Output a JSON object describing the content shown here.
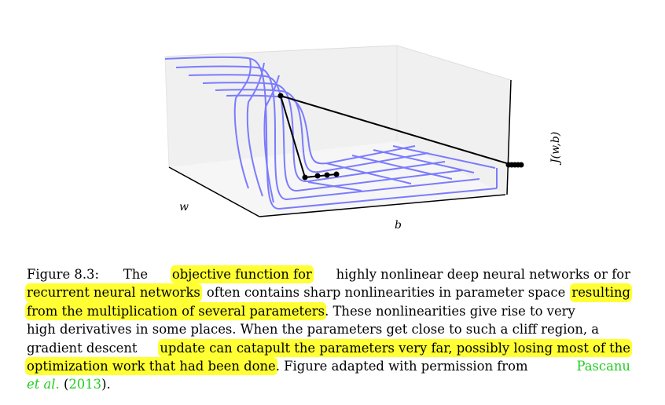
{
  "figure": {
    "axis_w": "w",
    "axis_b": "b",
    "axis_j": "J(w,b)",
    "surface_color": "#7b7bff",
    "path_color": "#000000",
    "highlight_color": "#ffff33",
    "citation_color": "#22cc22"
  },
  "caption": {
    "l1": [
      "Figure 8.3:",
      "The",
      "objective function for",
      "highly nonlinear deep neural networks or for"
    ],
    "l2": [
      "recurrent neural networks",
      "often contains sharp nonlinearities in parameter space",
      "resulting"
    ],
    "l3": [
      "from the multiplication of several parameters",
      ". These nonlinearities give rise to very"
    ],
    "l4": "high derivatives in some places. When the parameters get close to such a cliff region, a",
    "l5": [
      "gradient descent",
      "update can catapult the parameters very far, possibly losing most of the"
    ],
    "l6": [
      "optimization work that had been done",
      ". Figure adapted with permission from",
      "Pascanu"
    ],
    "l7": [
      "et al.",
      "(2013)."
    ]
  }
}
